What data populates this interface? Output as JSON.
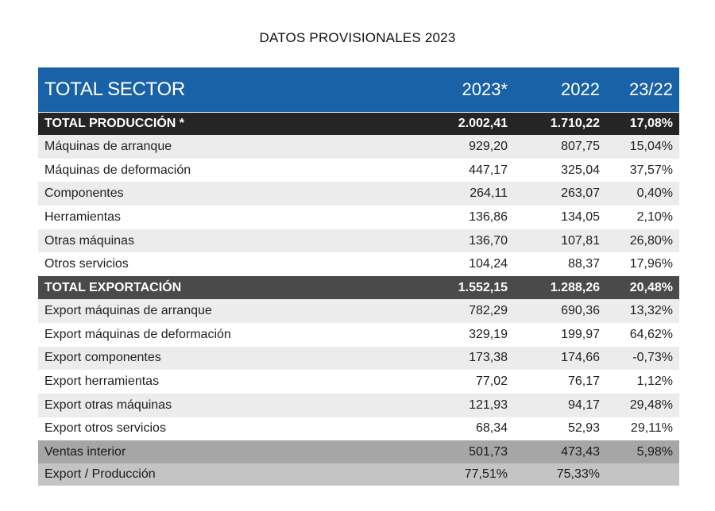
{
  "title": "DATOS PROVISIONALES 2023",
  "header": {
    "label": "TOTAL SECTOR",
    "col_a": "2023*",
    "col_b": "2022",
    "col_c": "23/22"
  },
  "total_produccion": {
    "label": "TOTAL PRODUCCIÓN *",
    "a": "2.002,41",
    "b": "1.710,22",
    "c": "17,08%"
  },
  "produccion_rows": [
    {
      "label": "Máquinas de arranque",
      "a": "929,20",
      "b": "807,75",
      "c": "15,04%"
    },
    {
      "label": "Máquinas de deformación",
      "a": "447,17",
      "b": "325,04",
      "c": "37,57%"
    },
    {
      "label": "Componentes",
      "a": "264,11",
      "b": "263,07",
      "c": "0,40%"
    },
    {
      "label": "Herramientas",
      "a": "136,86",
      "b": "134,05",
      "c": "2,10%"
    },
    {
      "label": "Otras máquinas",
      "a": "136,70",
      "b": "107,81",
      "c": "26,80%"
    },
    {
      "label": "Otros servicios",
      "a": "104,24",
      "b": "88,37",
      "c": "17,96%"
    }
  ],
  "total_exportacion": {
    "label": "TOTAL EXPORTACIÓN",
    "a": "1.552,15",
    "b": "1.288,26",
    "c": "20,48%"
  },
  "exportacion_rows": [
    {
      "label": "Export máquinas de arranque",
      "a": "782,29",
      "b": "690,36",
      "c": "13,32%"
    },
    {
      "label": "Export máquinas de deformación",
      "a": "329,19",
      "b": "199,97",
      "c": "64,62%"
    },
    {
      "label": "Export componentes",
      "a": "173,38",
      "b": "174,66",
      "c": "-0,73%"
    },
    {
      "label": "Export herramientas",
      "a": "77,02",
      "b": "76,17",
      "c": "1,12%"
    },
    {
      "label": "Export otras máquinas",
      "a": "121,93",
      "b": "94,17",
      "c": "29,48%"
    },
    {
      "label": "Export otros servicios",
      "a": "68,34",
      "b": "52,93",
      "c": "29,11%"
    }
  ],
  "ventas_interior": {
    "label": "Ventas interior",
    "a": "501,73",
    "b": "473,43",
    "c": "5,98%"
  },
  "export_produccion": {
    "label": "Export / Producción",
    "a": "77,51%",
    "b": "75,33%",
    "c": ""
  }
}
